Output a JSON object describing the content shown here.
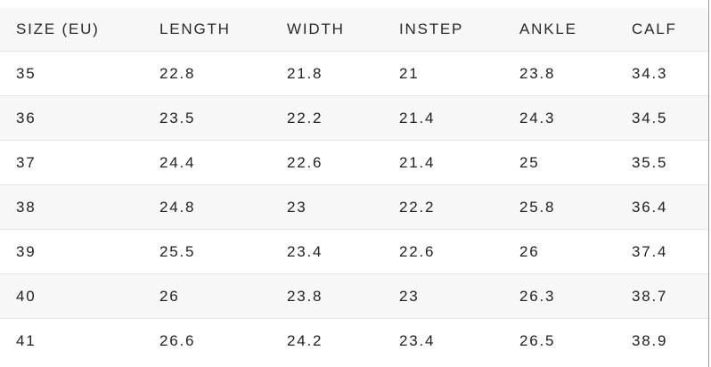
{
  "table": {
    "headers": [
      "SIZE (EU)",
      "LENGTH",
      "WIDTH",
      "INSTEP",
      "ANKLE",
      "CALF"
    ],
    "rows": [
      [
        "35",
        "22.8",
        "21.8",
        "21",
        "23.8",
        "34.3"
      ],
      [
        "36",
        "23.5",
        "22.2",
        "21.4",
        "24.3",
        "34.5"
      ],
      [
        "37",
        "24.4",
        "22.6",
        "21.4",
        "25",
        "35.5"
      ],
      [
        "38",
        "24.8",
        "23",
        "22.2",
        "25.8",
        "36.4"
      ],
      [
        "39",
        "25.5",
        "23.4",
        "22.6",
        "26",
        "37.4"
      ],
      [
        "40",
        "26",
        "23.8",
        "23",
        "26.3",
        "38.7"
      ],
      [
        "41",
        "26.6",
        "24.2",
        "23.4",
        "26.5",
        "38.9"
      ]
    ]
  },
  "colors": {
    "header_background": "#f7f7f7",
    "stripe_background": "#f7f7f7",
    "text": "#222222",
    "row_border": "#e6e6e6"
  }
}
